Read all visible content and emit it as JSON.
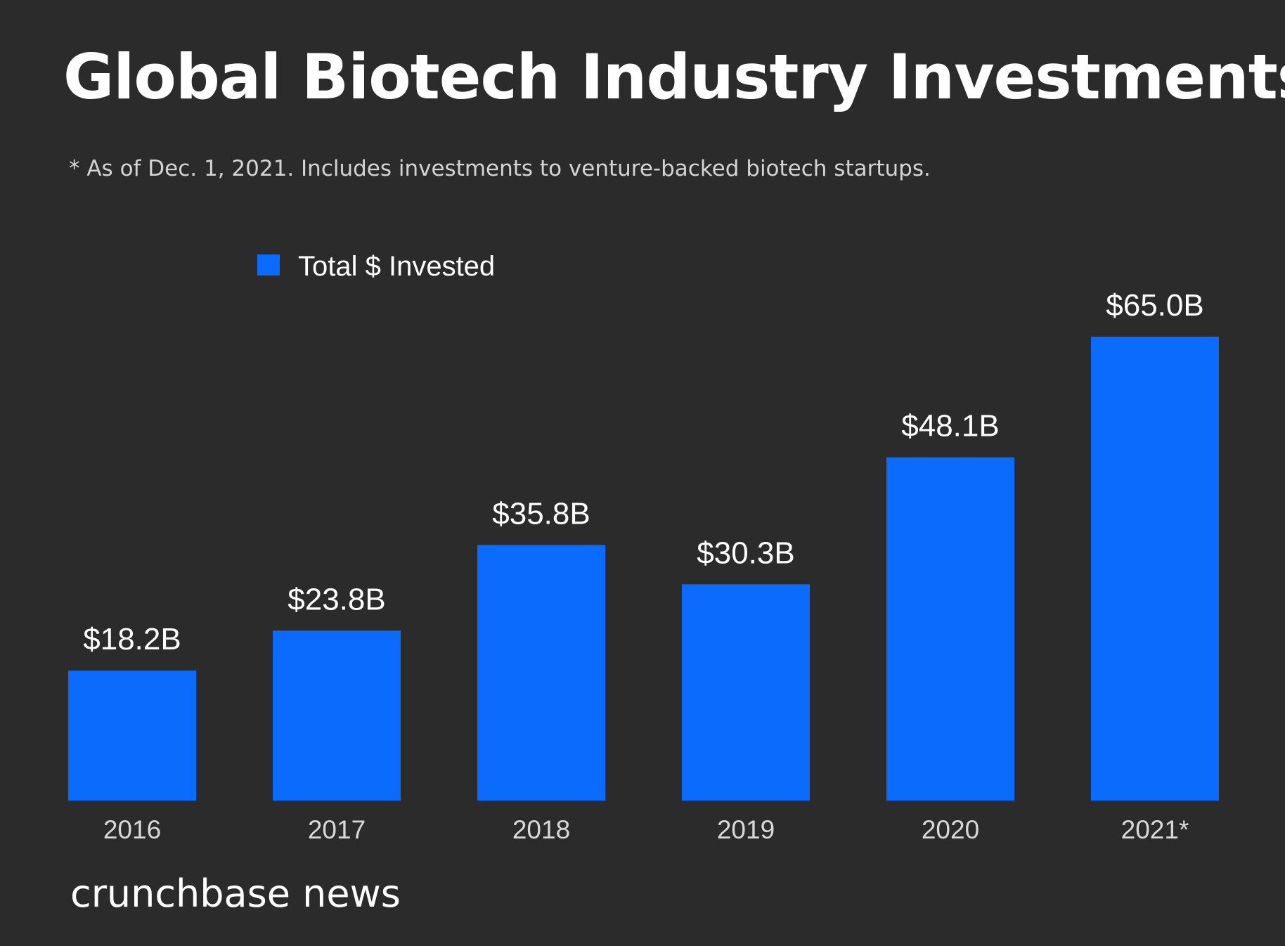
{
  "header": {
    "title": "Global Biotech Industry Investments",
    "subtitle": "* As of Dec. 1, 2021. Includes investments to venture-backed biotech startups."
  },
  "footer": {
    "brand": "crunchbase news"
  },
  "colors": {
    "background": "#2b2b2b",
    "bar": "#0a6bfd",
    "text": "#ffffff",
    "axis_text": "#d9d9d9"
  },
  "chart_data": {
    "type": "bar",
    "title": "Global Biotech Industry Investments",
    "xlabel": "",
    "ylabel": "",
    "categories": [
      "2016",
      "2017",
      "2018",
      "2019",
      "2020",
      "2021*"
    ],
    "series": [
      {
        "name": "Total $ Invested",
        "values": [
          18.2,
          23.8,
          35.8,
          30.3,
          48.1,
          65.0
        ],
        "labels": [
          "$18.2B",
          "$23.8B",
          "$35.8B",
          "$30.3B",
          "$48.1B",
          "$65.0B"
        ]
      }
    ],
    "ylim": [
      0,
      65.0
    ],
    "grid": false,
    "legend": "top-left"
  }
}
